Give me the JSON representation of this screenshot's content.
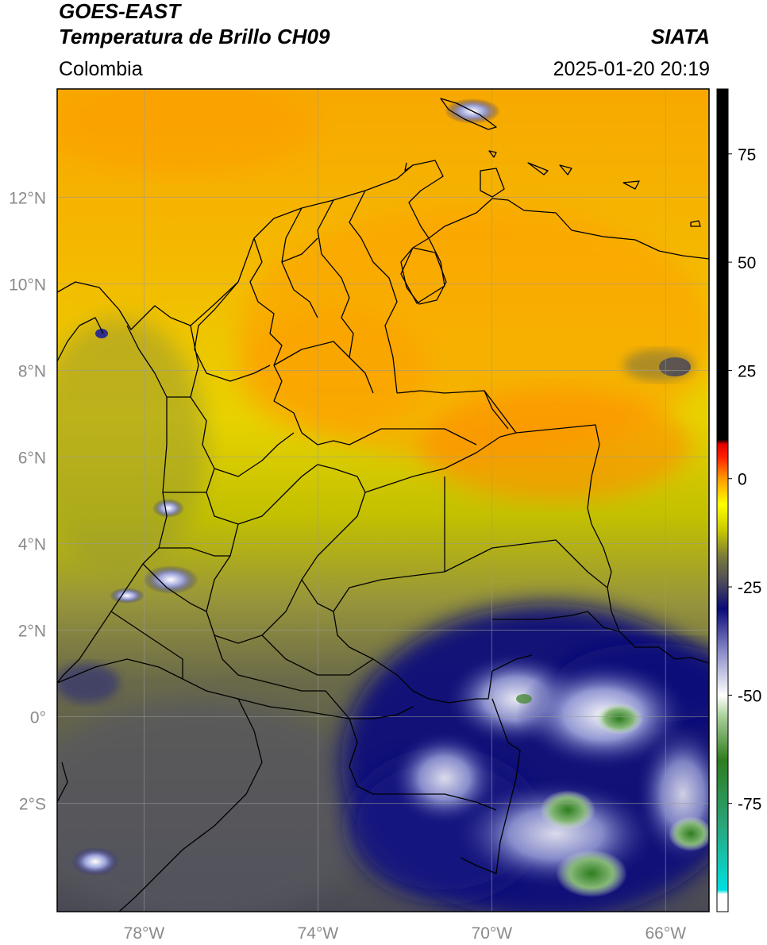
{
  "header": {
    "satellite": "GOES-EAST",
    "product": "Temperatura de Brillo CH09",
    "region": "Colombia",
    "source": "SIATA",
    "datetime": "2025-01-20 20:19"
  },
  "map": {
    "lon_range": [
      -80,
      -65
    ],
    "lat_range": [
      -4.5,
      14.5
    ],
    "lat_ticks": [
      {
        "value": 12,
        "label": "12°N"
      },
      {
        "value": 10,
        "label": "10°N"
      },
      {
        "value": 8,
        "label": "8°N"
      },
      {
        "value": 6,
        "label": "6°N"
      },
      {
        "value": 4,
        "label": "4°N"
      },
      {
        "value": 2,
        "label": "2°N"
      },
      {
        "value": 0,
        "label": "0°"
      },
      {
        "value": -2,
        "label": "2°S"
      }
    ],
    "lon_ticks": [
      {
        "value": -78,
        "label": "78°W"
      },
      {
        "value": -74,
        "label": "74°W"
      },
      {
        "value": -70,
        "label": "70°W"
      },
      {
        "value": -66,
        "label": "66°W"
      }
    ],
    "gridlines": true
  },
  "colorbar": {
    "range": [
      -100,
      90
    ],
    "ticks": [
      {
        "value": 75,
        "label": "75"
      },
      {
        "value": 50,
        "label": "50"
      },
      {
        "value": 25,
        "label": "25"
      },
      {
        "value": 0,
        "label": "0"
      },
      {
        "value": -25,
        "label": "-25"
      },
      {
        "value": -50,
        "label": "-50"
      },
      {
        "value": -75,
        "label": "-75"
      }
    ],
    "stops": [
      {
        "value": -100,
        "color": "#ffffff"
      },
      {
        "value": -96,
        "color": "#ffffff"
      },
      {
        "value": -95,
        "color": "#00e0e0"
      },
      {
        "value": -80,
        "color": "#2aa57a"
      },
      {
        "value": -65,
        "color": "#2e7d1e"
      },
      {
        "value": -55,
        "color": "#a8cf98"
      },
      {
        "value": -50,
        "color": "#ffffff"
      },
      {
        "value": -40,
        "color": "#8a8cc8"
      },
      {
        "value": -30,
        "color": "#0a0a78"
      },
      {
        "value": -24,
        "color": "#4a4a5a"
      },
      {
        "value": -18,
        "color": "#7a7a3a"
      },
      {
        "value": -12,
        "color": "#c8c800"
      },
      {
        "value": -6,
        "color": "#ffff00"
      },
      {
        "value": 0,
        "color": "#ff9a00"
      },
      {
        "value": 5,
        "color": "#ff2000"
      },
      {
        "value": 8,
        "color": "#e00000"
      },
      {
        "value": 9,
        "color": "#000000"
      },
      {
        "value": 90,
        "color": "#000000"
      }
    ]
  }
}
